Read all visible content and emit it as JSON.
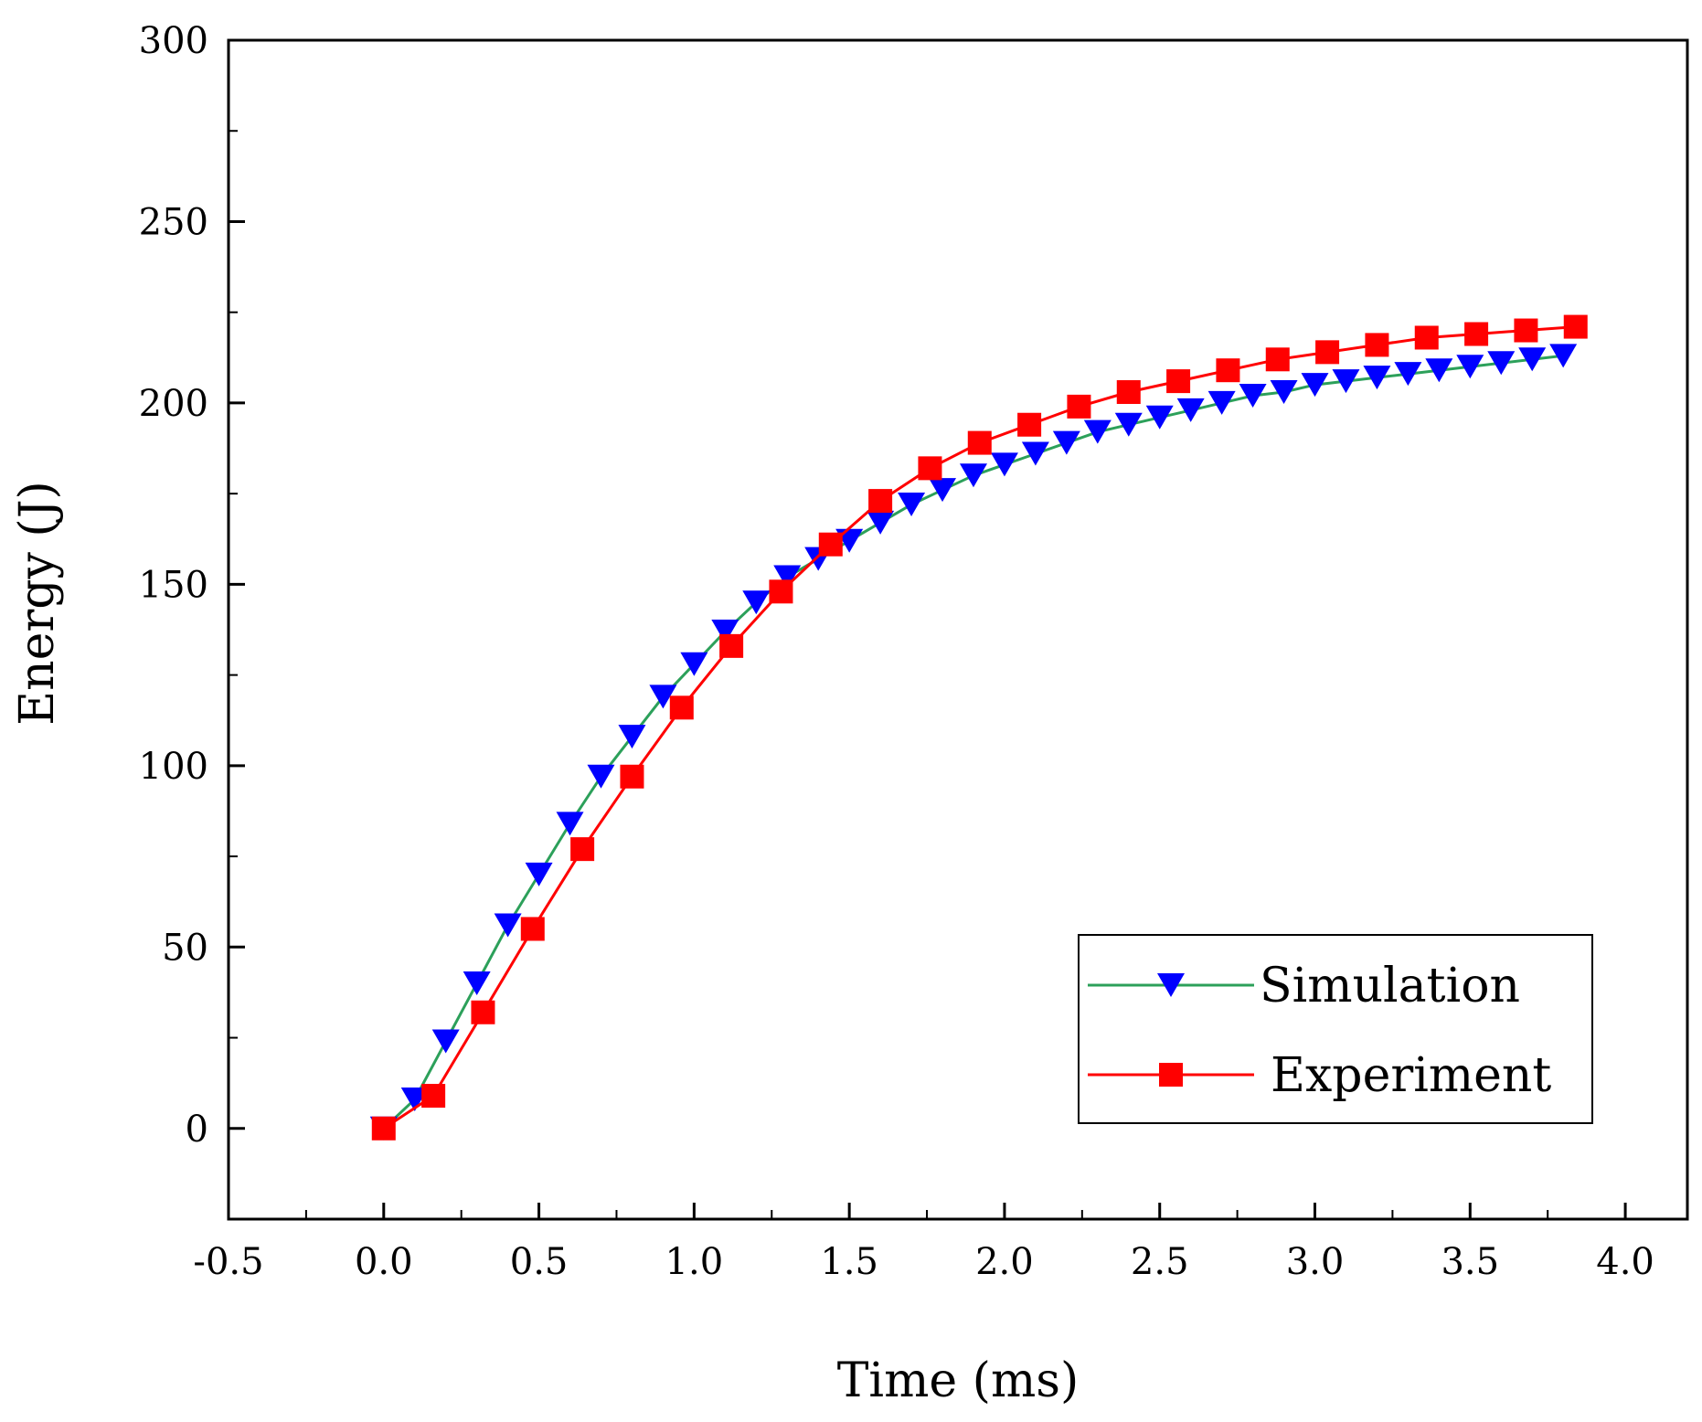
{
  "chart_data": {
    "type": "line",
    "title": "",
    "xlabel": "Time (ms)",
    "ylabel": "Energy (J)",
    "xlim": [
      -0.5,
      4.2
    ],
    "ylim": [
      -25,
      300
    ],
    "x_ticks": [
      -0.5,
      0.0,
      0.5,
      1.0,
      1.5,
      2.0,
      2.5,
      3.0,
      3.5,
      4.0
    ],
    "x_tick_labels": [
      "-0.5",
      "0.0",
      "0.5",
      "1.0",
      "1.5",
      "2.0",
      "2.5",
      "3.0",
      "3.5",
      "4.0"
    ],
    "y_ticks": [
      0,
      50,
      100,
      150,
      200,
      250,
      300
    ],
    "y_tick_labels": [
      "0",
      "50",
      "100",
      "150",
      "200",
      "250",
      "300"
    ],
    "grid": false,
    "legend_position": "bottom-right",
    "series": [
      {
        "name": "Simulation",
        "line_color": "#2ca05a",
        "marker": "triangle-down",
        "marker_color": "#0000ff",
        "x": [
          0.0,
          0.1,
          0.2,
          0.3,
          0.4,
          0.5,
          0.6,
          0.7,
          0.8,
          0.9,
          1.0,
          1.1,
          1.2,
          1.3,
          1.4,
          1.5,
          1.6,
          1.7,
          1.8,
          1.9,
          2.0,
          2.1,
          2.2,
          2.3,
          2.4,
          2.5,
          2.6,
          2.7,
          2.8,
          2.9,
          3.0,
          3.1,
          3.2,
          3.3,
          3.4,
          3.5,
          3.6,
          3.7,
          3.8
        ],
        "y": [
          0,
          8,
          24,
          40,
          56,
          70,
          84,
          97,
          108,
          119,
          128,
          137,
          145,
          152,
          157,
          162,
          167,
          172,
          176,
          180,
          183,
          186,
          189,
          192,
          194,
          196,
          198,
          200,
          202,
          203,
          205,
          206,
          207,
          208,
          209,
          210,
          211,
          212,
          213
        ]
      },
      {
        "name": "Experiment",
        "line_color": "#ff0000",
        "marker": "square",
        "marker_color": "#ff0000",
        "x": [
          0.0,
          0.16,
          0.32,
          0.48,
          0.64,
          0.8,
          0.96,
          1.12,
          1.28,
          1.44,
          1.6,
          1.76,
          1.92,
          2.08,
          2.24,
          2.4,
          2.56,
          2.72,
          2.88,
          3.04,
          3.2,
          3.36,
          3.52,
          3.68,
          3.84
        ],
        "y": [
          0,
          9,
          32,
          55,
          77,
          97,
          116,
          133,
          148,
          161,
          173,
          182,
          189,
          194,
          199,
          203,
          206,
          209,
          212,
          214,
          216,
          218,
          219,
          220,
          221
        ]
      }
    ]
  }
}
